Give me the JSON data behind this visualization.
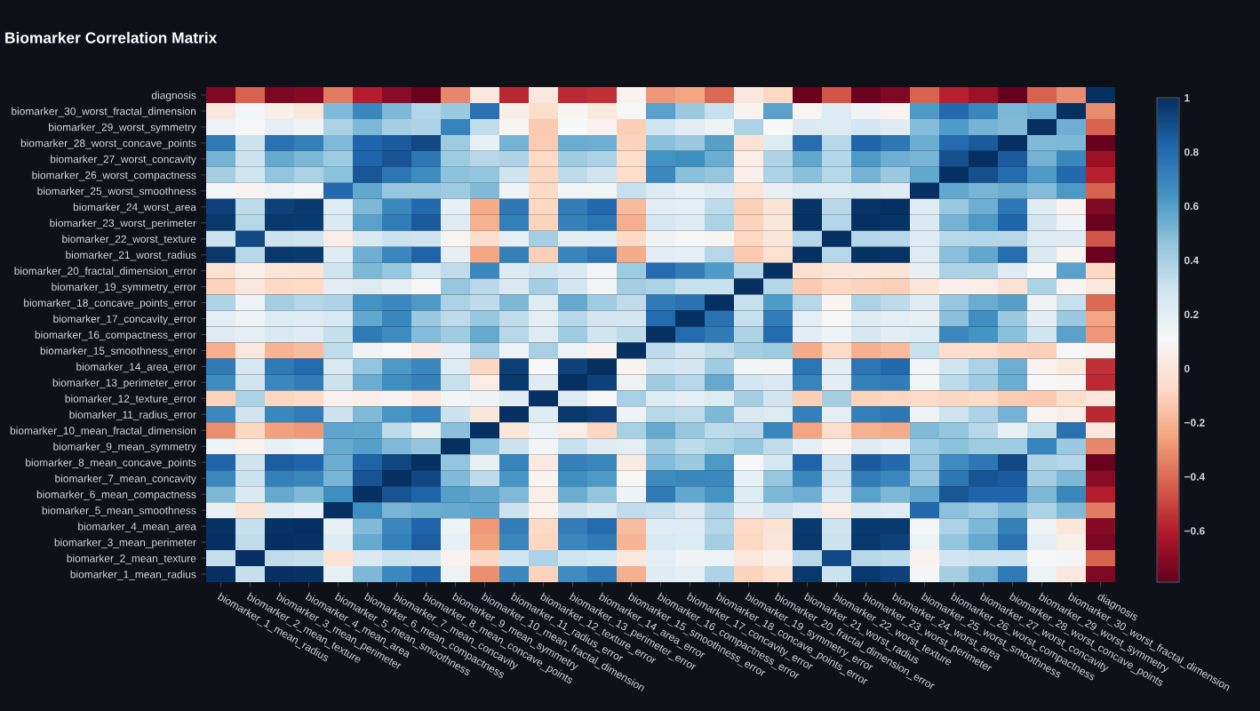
{
  "chart_data": {
    "type": "heatmap",
    "title": "Biomarker Correlation Matrix",
    "categories": [
      "biomarker_1_mean_radius",
      "biomarker_2_mean_texture",
      "biomarker_3_mean_perimeter",
      "biomarker_4_mean_area",
      "biomarker_5_mean_smoothness",
      "biomarker_6_mean_compactness",
      "biomarker_7_mean_concavity",
      "biomarker_8_mean_concave_points",
      "biomarker_9_mean_symmetry",
      "biomarker_10_mean_fractal_dimension",
      "biomarker_11_radius_error",
      "biomarker_12_texture_error",
      "biomarker_13_perimeter_error",
      "biomarker_14_area_error",
      "biomarker_15_smoothness_error",
      "biomarker_16_compactness_error",
      "biomarker_17_concavity_error",
      "biomarker_18_concave_points_error",
      "biomarker_19_symmetry_error",
      "biomarker_20_fractal_dimension_error",
      "biomarker_21_worst_radius",
      "biomarker_22_worst_texture",
      "biomarker_23_worst_perimeter",
      "biomarker_24_worst_area",
      "biomarker_25_worst_smoothness",
      "biomarker_26_worst_compactness",
      "biomarker_27_worst_concavity",
      "biomarker_28_worst_concave_points",
      "biomarker_29_worst_symmetry",
      "biomarker_30_worst_fractal_dimension",
      "diagnosis"
    ],
    "y_categories": [
      "diagnosis",
      "biomarker_30_worst_fractal_dimension",
      "biomarker_29_worst_symmetry",
      "biomarker_28_worst_concave_points",
      "biomarker_27_worst_concavity",
      "biomarker_26_worst_compactness",
      "biomarker_25_worst_smoothness",
      "biomarker_24_worst_area",
      "biomarker_23_worst_perimeter",
      "biomarker_22_worst_texture",
      "biomarker_21_worst_radius",
      "biomarker_20_fractal_dimension_error",
      "biomarker_19_symmetry_error",
      "biomarker_18_concave_points_error",
      "biomarker_17_concavity_error",
      "biomarker_16_compactness_error",
      "biomarker_15_smoothness_error",
      "biomarker_14_area_error",
      "biomarker_13_perimeter_error",
      "biomarker_12_texture_error",
      "biomarker_11_radius_error",
      "biomarker_10_mean_fractal_dimension",
      "biomarker_9_mean_symmetry",
      "biomarker_8_mean_concave_points",
      "biomarker_7_mean_concavity",
      "biomarker_6_mean_compactness",
      "biomarker_5_mean_smoothness",
      "biomarker_4_mean_area",
      "biomarker_3_mean_perimeter",
      "biomarker_2_mean_texture",
      "biomarker_1_mean_radius"
    ],
    "cells": [
      [
        -0.73,
        -0.42,
        -0.74,
        -0.71,
        -0.36,
        -0.6,
        -0.7,
        -0.78,
        -0.33,
        0.01,
        -0.57,
        0.01,
        -0.56,
        -0.55,
        0.07,
        -0.29,
        -0.25,
        -0.41,
        0.01,
        -0.08,
        -0.78,
        -0.46,
        -0.78,
        -0.73,
        -0.42,
        -0.59,
        -0.66,
        -0.79,
        -0.42,
        -0.32,
        1
      ],
      [
        0.01,
        0.12,
        0.05,
        0.0,
        0.5,
        0.69,
        0.51,
        0.37,
        0.44,
        0.77,
        0.05,
        -0.05,
        0.09,
        0.02,
        0.1,
        0.59,
        0.44,
        0.31,
        0.08,
        0.59,
        0.09,
        0.22,
        0.14,
        0.08,
        0.62,
        0.81,
        0.69,
        0.51,
        0.54,
        1,
        -0.32
      ],
      [
        0.16,
        0.1,
        0.19,
        0.14,
        0.39,
        0.51,
        0.41,
        0.38,
        0.7,
        0.33,
        0.09,
        -0.13,
        0.11,
        0.07,
        -0.11,
        0.28,
        0.2,
        0.14,
        0.39,
        0.11,
        0.24,
        0.23,
        0.27,
        0.21,
        0.49,
        0.61,
        0.53,
        0.5,
        1,
        0.54,
        -0.42
      ],
      [
        0.74,
        0.3,
        0.77,
        0.72,
        0.5,
        0.82,
        0.86,
        0.91,
        0.43,
        0.18,
        0.53,
        -0.12,
        0.55,
        0.54,
        -0.1,
        0.48,
        0.44,
        0.6,
        -0.03,
        0.22,
        0.79,
        0.36,
        0.82,
        0.75,
        0.55,
        0.8,
        0.86,
        1,
        0.5,
        0.51,
        -0.79
      ],
      [
        0.53,
        0.3,
        0.56,
        0.51,
        0.43,
        0.82,
        0.88,
        0.75,
        0.43,
        0.35,
        0.38,
        -0.07,
        0.42,
        0.39,
        -0.06,
        0.64,
        0.66,
        0.55,
        0.04,
        0.38,
        0.57,
        0.37,
        0.62,
        0.54,
        0.52,
        0.89,
        1,
        0.86,
        0.53,
        0.69,
        -0.66
      ],
      [
        0.41,
        0.28,
        0.46,
        0.39,
        0.47,
        0.87,
        0.75,
        0.67,
        0.47,
        0.46,
        0.29,
        -0.09,
        0.34,
        0.28,
        -0.06,
        0.68,
        0.48,
        0.45,
        0.06,
        0.39,
        0.48,
        0.36,
        0.53,
        0.44,
        0.57,
        1,
        0.89,
        0.8,
        0.61,
        0.81,
        -0.59
      ],
      [
        0.12,
        0.08,
        0.15,
        0.12,
        0.81,
        0.57,
        0.45,
        0.45,
        0.43,
        0.5,
        0.14,
        -0.07,
        0.13,
        0.13,
        0.31,
        0.23,
        0.17,
        0.22,
        -0.01,
        0.17,
        0.22,
        0.23,
        0.24,
        0.21,
        1,
        0.57,
        0.52,
        0.55,
        0.49,
        0.62,
        -0.42
      ],
      [
        0.94,
        0.34,
        0.94,
        0.96,
        0.21,
        0.51,
        0.68,
        0.81,
        0.18,
        -0.23,
        0.75,
        -0.08,
        0.73,
        0.81,
        -0.18,
        0.2,
        0.19,
        0.34,
        -0.11,
        -0.02,
        0.98,
        0.35,
        0.98,
        1,
        0.21,
        0.44,
        0.54,
        0.75,
        0.21,
        0.08,
        -0.73
      ],
      [
        0.97,
        0.36,
        0.97,
        0.96,
        0.24,
        0.59,
        0.73,
        0.86,
        0.22,
        -0.21,
        0.72,
        -0.1,
        0.72,
        0.76,
        -0.22,
        0.26,
        0.23,
        0.39,
        -0.1,
        0.0,
        0.99,
        0.37,
        1,
        0.98,
        0.24,
        0.53,
        0.62,
        0.82,
        0.27,
        0.14,
        -0.78
      ],
      [
        0.3,
        0.91,
        0.3,
        0.29,
        0.04,
        0.25,
        0.3,
        0.29,
        0.09,
        -0.05,
        0.19,
        0.41,
        0.2,
        0.2,
        -0.07,
        0.14,
        0.1,
        0.09,
        -0.08,
        0.0,
        0.36,
        1,
        0.37,
        0.35,
        0.23,
        0.36,
        0.37,
        0.36,
        0.23,
        0.22,
        -0.46
      ],
      [
        0.97,
        0.35,
        0.97,
        0.96,
        0.21,
        0.54,
        0.69,
        0.83,
        0.19,
        -0.25,
        0.72,
        -0.11,
        0.7,
        0.76,
        -0.23,
        0.2,
        0.19,
        0.36,
        -0.13,
        -0.04,
        1,
        0.36,
        0.99,
        0.98,
        0.22,
        0.48,
        0.57,
        0.79,
        0.24,
        0.09,
        -0.78
      ],
      [
        -0.04,
        0.05,
        -0.01,
        -0.02,
        0.28,
        0.51,
        0.45,
        0.26,
        0.33,
        0.69,
        0.23,
        0.28,
        0.24,
        0.13,
        0.43,
        0.8,
        0.73,
        0.61,
        0.37,
        1,
        -0.04,
        0.0,
        0.0,
        -0.02,
        0.17,
        0.39,
        0.38,
        0.22,
        0.11,
        0.59,
        -0.08
      ],
      [
        -0.1,
        0.01,
        -0.08,
        -0.07,
        0.2,
        0.23,
        0.18,
        0.1,
        0.45,
        0.35,
        0.24,
        0.41,
        0.27,
        0.13,
        0.41,
        0.39,
        0.31,
        0.31,
        1,
        0.37,
        -0.13,
        -0.08,
        -0.1,
        -0.11,
        -0.01,
        0.06,
        0.04,
        -0.03,
        0.39,
        0.08,
        0.01
      ],
      [
        0.38,
        0.16,
        0.41,
        0.37,
        0.38,
        0.64,
        0.68,
        0.62,
        0.39,
        0.34,
        0.51,
        0.23,
        0.56,
        0.42,
        0.33,
        0.74,
        0.77,
        1,
        0.31,
        0.61,
        0.36,
        0.09,
        0.39,
        0.34,
        0.22,
        0.45,
        0.55,
        0.6,
        0.14,
        0.31,
        -0.41
      ],
      [
        0.19,
        0.14,
        0.23,
        0.21,
        0.25,
        0.57,
        0.69,
        0.44,
        0.34,
        0.45,
        0.33,
        0.19,
        0.36,
        0.27,
        0.27,
        0.8,
        1,
        0.77,
        0.31,
        0.73,
        0.19,
        0.1,
        0.23,
        0.19,
        0.17,
        0.48,
        0.66,
        0.44,
        0.2,
        0.44,
        -0.25
      ],
      [
        0.21,
        0.19,
        0.25,
        0.21,
        0.32,
        0.74,
        0.67,
        0.49,
        0.42,
        0.56,
        0.36,
        0.23,
        0.42,
        0.28,
        0.34,
        1,
        0.8,
        0.74,
        0.39,
        0.8,
        0.2,
        0.14,
        0.26,
        0.2,
        0.23,
        0.68,
        0.64,
        0.48,
        0.28,
        0.59,
        -0.29
      ],
      [
        -0.22,
        0.01,
        -0.2,
        -0.17,
        0.33,
        0.14,
        0.1,
        0.03,
        0.19,
        0.4,
        0.16,
        0.4,
        0.15,
        0.08,
        1,
        0.34,
        0.27,
        0.33,
        0.41,
        0.43,
        -0.23,
        -0.07,
        -0.22,
        -0.18,
        0.31,
        -0.06,
        -0.06,
        -0.1,
        -0.11,
        0.1,
        0.07
      ],
      [
        0.74,
        0.26,
        0.74,
        0.8,
        0.25,
        0.46,
        0.62,
        0.69,
        0.22,
        -0.09,
        0.95,
        0.11,
        0.94,
        1,
        0.08,
        0.28,
        0.27,
        0.42,
        0.13,
        0.13,
        0.76,
        0.2,
        0.76,
        0.81,
        0.13,
        0.28,
        0.39,
        0.54,
        0.07,
        0.02,
        -0.55
      ],
      [
        0.67,
        0.28,
        0.69,
        0.73,
        0.3,
        0.55,
        0.66,
        0.71,
        0.31,
        0.04,
        0.97,
        0.22,
        1,
        0.94,
        0.15,
        0.42,
        0.36,
        0.56,
        0.27,
        0.24,
        0.7,
        0.2,
        0.72,
        0.73,
        0.13,
        0.34,
        0.42,
        0.55,
        0.11,
        0.09,
        -0.56
      ],
      [
        -0.1,
        0.39,
        -0.09,
        -0.07,
        0.07,
        0.05,
        0.08,
        0.02,
        0.13,
        0.16,
        0.21,
        1,
        0.22,
        0.11,
        0.4,
        0.23,
        0.19,
        0.23,
        0.41,
        0.28,
        -0.11,
        0.41,
        -0.1,
        -0.08,
        -0.07,
        -0.09,
        -0.07,
        -0.12,
        -0.13,
        -0.05,
        0.01
      ],
      [
        0.68,
        0.28,
        0.69,
        0.73,
        0.3,
        0.5,
        0.63,
        0.7,
        0.3,
        0.0,
        1,
        0.21,
        0.97,
        0.95,
        0.16,
        0.36,
        0.33,
        0.51,
        0.24,
        0.23,
        0.72,
        0.19,
        0.72,
        0.75,
        0.14,
        0.29,
        0.38,
        0.53,
        0.09,
        0.05,
        -0.57
      ],
      [
        -0.31,
        -0.08,
        -0.26,
        -0.28,
        0.58,
        0.57,
        0.34,
        0.17,
        0.48,
        1,
        0.0,
        0.16,
        0.04,
        -0.09,
        0.4,
        0.56,
        0.45,
        0.34,
        0.35,
        0.69,
        -0.25,
        -0.05,
        -0.21,
        -0.23,
        0.5,
        0.46,
        0.35,
        0.18,
        0.33,
        0.77,
        0.01
      ],
      [
        0.15,
        0.07,
        0.18,
        0.15,
        0.56,
        0.6,
        0.5,
        0.46,
        1,
        0.48,
        0.3,
        0.13,
        0.31,
        0.22,
        0.19,
        0.42,
        0.34,
        0.39,
        0.45,
        0.33,
        0.19,
        0.09,
        0.22,
        0.18,
        0.43,
        0.47,
        0.43,
        0.43,
        0.7,
        0.44,
        -0.33
      ],
      [
        0.82,
        0.29,
        0.85,
        0.82,
        0.55,
        0.83,
        0.92,
        1,
        0.46,
        0.17,
        0.7,
        0.02,
        0.71,
        0.69,
        0.03,
        0.49,
        0.44,
        0.62,
        0.1,
        0.26,
        0.83,
        0.29,
        0.86,
        0.81,
        0.45,
        0.67,
        0.75,
        0.91,
        0.38,
        0.37,
        -0.78
      ],
      [
        0.68,
        0.3,
        0.72,
        0.69,
        0.52,
        0.88,
        1,
        0.92,
        0.5,
        0.34,
        0.63,
        0.08,
        0.66,
        0.62,
        0.1,
        0.67,
        0.69,
        0.68,
        0.18,
        0.45,
        0.69,
        0.3,
        0.73,
        0.68,
        0.45,
        0.75,
        0.88,
        0.86,
        0.41,
        0.51,
        -0.7
      ],
      [
        0.51,
        0.24,
        0.56,
        0.5,
        0.66,
        1,
        0.88,
        0.83,
        0.6,
        0.57,
        0.5,
        0.05,
        0.55,
        0.46,
        0.14,
        0.74,
        0.57,
        0.64,
        0.23,
        0.51,
        0.54,
        0.25,
        0.59,
        0.51,
        0.57,
        0.87,
        0.82,
        0.82,
        0.51,
        0.69,
        -0.6
      ],
      [
        0.17,
        -0.02,
        0.21,
        0.18,
        1,
        0.66,
        0.52,
        0.55,
        0.56,
        0.58,
        0.3,
        0.07,
        0.3,
        0.25,
        0.33,
        0.32,
        0.25,
        0.38,
        0.2,
        0.28,
        0.21,
        0.04,
        0.24,
        0.21,
        0.81,
        0.47,
        0.43,
        0.5,
        0.39,
        0.5,
        -0.36
      ],
      [
        0.99,
        0.32,
        0.99,
        1,
        0.18,
        0.5,
        0.69,
        0.82,
        0.15,
        -0.28,
        0.73,
        -0.07,
        0.73,
        0.8,
        -0.17,
        0.21,
        0.21,
        0.37,
        -0.07,
        -0.02,
        0.96,
        0.29,
        0.96,
        0.96,
        0.12,
        0.39,
        0.51,
        0.72,
        0.14,
        0.0,
        -0.71
      ],
      [
        1.0,
        0.33,
        1,
        0.99,
        0.21,
        0.56,
        0.72,
        0.85,
        0.18,
        -0.26,
        0.69,
        -0.09,
        0.69,
        0.74,
        -0.2,
        0.25,
        0.23,
        0.41,
        -0.08,
        -0.01,
        0.97,
        0.3,
        0.97,
        0.94,
        0.15,
        0.46,
        0.56,
        0.77,
        0.19,
        0.05,
        -0.74
      ],
      [
        0.32,
        1,
        0.33,
        0.32,
        -0.02,
        0.24,
        0.3,
        0.29,
        0.07,
        -0.08,
        0.28,
        0.39,
        0.28,
        0.26,
        0.01,
        0.19,
        0.14,
        0.16,
        0.01,
        0.05,
        0.35,
        0.91,
        0.36,
        0.34,
        0.08,
        0.28,
        0.3,
        0.3,
        0.1,
        0.12,
        -0.42
      ],
      [
        1,
        0.32,
        1.0,
        0.99,
        0.17,
        0.51,
        0.68,
        0.82,
        0.15,
        -0.31,
        0.68,
        -0.1,
        0.67,
        0.74,
        -0.22,
        0.21,
        0.19,
        0.38,
        -0.1,
        -0.04,
        0.97,
        0.3,
        0.97,
        0.94,
        0.12,
        0.41,
        0.53,
        0.74,
        0.16,
        0.01,
        -0.73
      ]
    ],
    "clim": [
      -0.79,
      1
    ],
    "cticks": [
      {
        "value": -0.6,
        "label": "−0.6"
      },
      {
        "value": -0.4,
        "label": "−0.4"
      },
      {
        "value": -0.2,
        "label": "−0.2"
      },
      0,
      0.2,
      0.4,
      0.6,
      0.8,
      1
    ]
  }
}
